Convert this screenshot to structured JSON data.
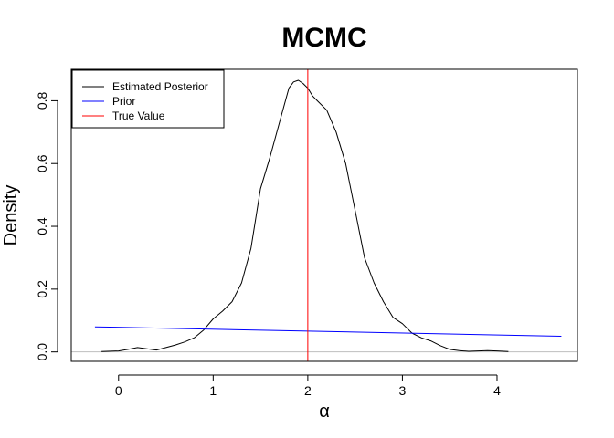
{
  "chart_data": {
    "type": "line",
    "title": "MCMC",
    "xlabel": "α",
    "ylabel": "Density",
    "xlim": [
      -0.5,
      4.85
    ],
    "ylim": [
      -0.03,
      0.9
    ],
    "x_ticks": [
      0,
      1,
      2,
      3,
      4
    ],
    "y_ticks": [
      0.0,
      0.2,
      0.4,
      0.6,
      0.8
    ],
    "x_tick_labels": [
      "0",
      "1",
      "2",
      "3",
      "4"
    ],
    "y_tick_labels": [
      "0.0",
      "0.2",
      "0.4",
      "0.6",
      "0.8"
    ],
    "grid": false,
    "legend_position": "top-left",
    "baseline": {
      "y": 0,
      "color": "#bebebe"
    },
    "series": [
      {
        "name": "Estimated Posterior",
        "color": "#000000",
        "x": [
          -0.18,
          0.0,
          0.1,
          0.2,
          0.3,
          0.4,
          0.5,
          0.6,
          0.7,
          0.8,
          0.9,
          1.0,
          1.1,
          1.2,
          1.3,
          1.4,
          1.5,
          1.6,
          1.7,
          1.8,
          1.85,
          1.9,
          1.95,
          2.0,
          2.05,
          2.1,
          2.2,
          2.3,
          2.4,
          2.5,
          2.6,
          2.7,
          2.8,
          2.9,
          3.0,
          3.1,
          3.2,
          3.3,
          3.4,
          3.5,
          3.6,
          3.7,
          3.8,
          3.9,
          4.0,
          4.12
        ],
        "y": [
          0.001,
          0.003,
          0.008,
          0.014,
          0.01,
          0.006,
          0.014,
          0.022,
          0.032,
          0.045,
          0.07,
          0.105,
          0.13,
          0.16,
          0.22,
          0.33,
          0.52,
          0.62,
          0.73,
          0.84,
          0.86,
          0.865,
          0.855,
          0.84,
          0.815,
          0.8,
          0.77,
          0.7,
          0.6,
          0.45,
          0.3,
          0.22,
          0.16,
          0.11,
          0.09,
          0.06,
          0.045,
          0.035,
          0.02,
          0.008,
          0.004,
          0.002,
          0.003,
          0.004,
          0.003,
          0.001
        ]
      },
      {
        "name": "Prior",
        "color": "#0000ff",
        "x": [
          -0.25,
          4.68
        ],
        "y": [
          0.08,
          0.05
        ]
      }
    ],
    "vlines": [
      {
        "name": "True Value",
        "x": 2.0,
        "color": "#ff0000"
      }
    ]
  }
}
